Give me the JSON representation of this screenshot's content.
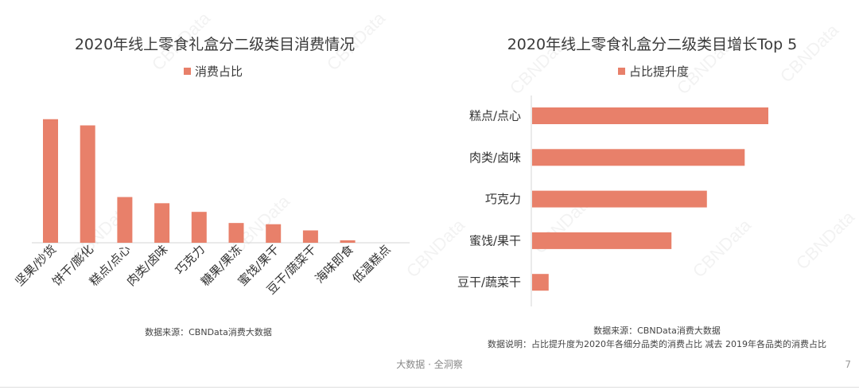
{
  "colors": {
    "bar": "#E8806A"
  },
  "watermark_text": "CBNData",
  "footer": {
    "center": "大数据 · 全洞察",
    "page": "7"
  },
  "chart_data": [
    {
      "type": "bar",
      "title": "2020年线上零食礼盒分二级类目消费情况",
      "legend": "消费占比",
      "categories": [
        "坚果/炒货",
        "饼干/膨化",
        "糕点/点心",
        "肉类/卤味",
        "巧克力",
        "糖果/果冻",
        "蜜饯/果干",
        "豆干/蔬菜干",
        "海味即食",
        "低温糕点"
      ],
      "values": [
        100,
        95,
        37,
        32,
        25,
        16,
        15,
        10,
        2,
        0
      ],
      "ylim": [
        0,
        105
      ],
      "grid": false,
      "legend_position": "top",
      "source": "数据来源：CBNData消费大数据"
    },
    {
      "type": "bar",
      "orientation": "horizontal",
      "title": "2020年线上零食礼盒分二级类目增长Top 5",
      "legend": "占比提升度",
      "categories": [
        "糕点/点心",
        "肉类/卤味",
        "巧克力",
        "蜜饯/果干",
        "豆干/蔬菜干"
      ],
      "values": [
        100,
        90,
        74,
        59,
        7
      ],
      "xlim": [
        0,
        100
      ],
      "grid": false,
      "legend_position": "top",
      "source": "数据来源：CBNData消费大数据",
      "note": "数据说明：占比提升度为2020年各细分品类的消费占比 减去 2019年各品类的消费占比"
    }
  ]
}
